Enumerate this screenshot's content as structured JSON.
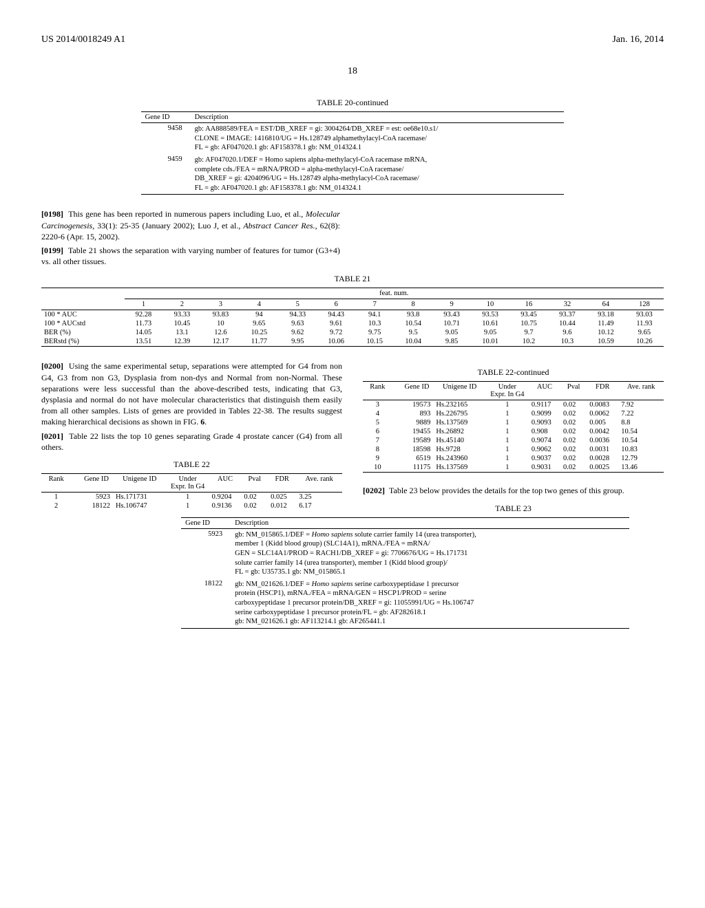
{
  "header": {
    "left": "US 2014/0018249 A1",
    "right": "Jan. 16, 2014",
    "page": "18"
  },
  "table20": {
    "caption": "TABLE 20-continued",
    "col1": "Gene ID",
    "col2": "Description",
    "rows": [
      {
        "id": "9458",
        "lines": [
          "gb: AA888589/FEA = EST/DB_XREF = gi: 3004264/DB_XREF = est: oe68e10.s1/",
          "CLONE = IMAGE: 1416810/UG = Hs.128749 alphamethylacyl-CoA racemase/",
          "FL = gb: AF047020.1 gb: AF158378.1 gb: NM_014324.1"
        ]
      },
      {
        "id": "9459",
        "lines": [
          "gb: AF047020.1/DEF = Homo sapiens alpha-methylacyl-CoA racemase mRNA,",
          "complete cds./FEA = mRNA/PROD = alpha-methylacyl-CoA racemase/",
          "DB_XREF = gi: 4204096/UG = Hs.128749 alpha-methylacyl-CoA racemase/",
          "FL = gb: AF047020.1 gb: AF158378.1 gb: NM_014324.1"
        ]
      }
    ]
  },
  "para0198": {
    "num": "[0198]",
    "text": "This gene has been reported in numerous papers including Luo, et al., Molecular Carcinogenesis, 33(1): 25-35 (January 2002); Luo J, et al., Abstract Cancer Res., 62(8): 2220-6 (Apr. 15, 2002)."
  },
  "para0199": {
    "num": "[0199]",
    "text": "Table 21 shows the separation with varying number of features for tumor (G3+4) vs. all other tissues."
  },
  "table21": {
    "caption": "TABLE 21",
    "group_header": "feat. num.",
    "cols": [
      "1",
      "2",
      "3",
      "4",
      "5",
      "6",
      "7",
      "8",
      "9",
      "10",
      "16",
      "32",
      "64",
      "128"
    ],
    "rows": [
      {
        "label": "100 * AUC",
        "vals": [
          "92.28",
          "93.33",
          "93.83",
          "94",
          "94.33",
          "94.43",
          "94.1",
          "93.8",
          "93.43",
          "93.53",
          "93.45",
          "93.37",
          "93.18",
          "93.03"
        ]
      },
      {
        "label": "100 * AUCstd",
        "vals": [
          "11.73",
          "10.45",
          "10",
          "9.65",
          "9.63",
          "9.61",
          "10.3",
          "10.54",
          "10.71",
          "10.61",
          "10.75",
          "10.44",
          "11.49",
          "11.93"
        ]
      },
      {
        "label": "BER (%)",
        "vals": [
          "14.05",
          "13.1",
          "12.6",
          "10.25",
          "9.62",
          "9.72",
          "9.75",
          "9.5",
          "9.05",
          "9.05",
          "9.7",
          "9.6",
          "10.12",
          "9.65"
        ]
      },
      {
        "label": "BERstd (%)",
        "vals": [
          "13.51",
          "12.39",
          "12.17",
          "11.77",
          "9.95",
          "10.06",
          "10.15",
          "10.04",
          "9.85",
          "10.01",
          "10.2",
          "10.3",
          "10.59",
          "10.26"
        ]
      }
    ]
  },
  "para0200": {
    "num": "[0200]",
    "text": "Using the same experimental setup, separations were attempted for G4 from non G4, G3 from non G3, Dysplasia from non-dys and Normal from non-Normal. These separations were less successful than the above-described tests, indicating that G3, dysplasia and normal do not have molecular characteristics that distinguish them easily from all other samples. Lists of genes are provided in Tables 22-38. The results suggest making hierarchical decisions as shown in FIG. 6."
  },
  "para0201": {
    "num": "[0201]",
    "text": "Table 22 lists the top 10 genes separating Grade 4 prostate cancer (G4) from all others."
  },
  "para0202": {
    "num": "[0202]",
    "text": "Table 23 below provides the details for the top two genes of this group."
  },
  "table22": {
    "caption": "TABLE 22",
    "caption_cont": "TABLE 22-continued",
    "headers": [
      "Rank",
      "Gene ID",
      "Unigene ID",
      "Under Expr. In G4",
      "AUC",
      "Pval",
      "FDR",
      "Ave. rank"
    ],
    "rows_a": [
      [
        "1",
        "5923",
        "Hs.171731",
        "1",
        "0.9204",
        "0.02",
        "0.025",
        "3.25"
      ],
      [
        "2",
        "18122",
        "Hs.106747",
        "1",
        "0.9136",
        "0.02",
        "0.012",
        "6.17"
      ]
    ],
    "rows_b": [
      [
        "3",
        "19573",
        "Hs.232165",
        "1",
        "0.9117",
        "0.02",
        "0.0083",
        "7.92"
      ],
      [
        "4",
        "893",
        "Hs.226795",
        "1",
        "0.9099",
        "0.02",
        "0.0062",
        "7.22"
      ],
      [
        "5",
        "9889",
        "Hs.137569",
        "1",
        "0.9093",
        "0.02",
        "0.005",
        "8.8"
      ],
      [
        "6",
        "19455",
        "Hs.26892",
        "1",
        "0.908",
        "0.02",
        "0.0042",
        "10.54"
      ],
      [
        "7",
        "19589",
        "Hs.45140",
        "1",
        "0.9074",
        "0.02",
        "0.0036",
        "10.54"
      ],
      [
        "8",
        "18598",
        "Hs.9728",
        "1",
        "0.9062",
        "0.02",
        "0.0031",
        "10.83"
      ],
      [
        "9",
        "6519",
        "Hs.243960",
        "1",
        "0.9037",
        "0.02",
        "0.0028",
        "12.79"
      ],
      [
        "10",
        "11175",
        "Hs.137569",
        "1",
        "0.9031",
        "0.02",
        "0.0025",
        "13.46"
      ]
    ]
  },
  "table23": {
    "caption": "TABLE 23",
    "col1": "Gene ID",
    "col2": "Description",
    "rows": [
      {
        "id": "5923",
        "lines": [
          "gb: NM_015865.1/DEF = Homo sapiens solute carrier family 14 (urea transporter),",
          "member 1 (Kidd blood group) (SLC14A1), mRNA./FEA = mRNA/",
          "GEN = SLC14A1/PROD = RACH1/DB_XREF = gi: 7706676/UG = Hs.171731",
          "solute carrier family 14 (urea transporter), member 1 (Kidd blood group)/",
          "FL = gb: U35735.1 gb: NM_015865.1"
        ]
      },
      {
        "id": "18122",
        "lines": [
          "gb: NM_021626.1/DEF = Homo sapiens serine carboxypeptidase 1 precursor",
          "protein (HSCP1), mRNA./FEA = mRNA/GEN = HSCP1/PROD = serine",
          "carboxypeptidase 1 precursor protein/DB_XREF = gi: 11055991/UG = Hs.106747",
          "serine carboxypeptidase 1 precursor protein/FL = gb: AF282618.1",
          "gb: NM_021626.1 gb: AF113214.1 gb: AF265441.1"
        ]
      }
    ]
  }
}
